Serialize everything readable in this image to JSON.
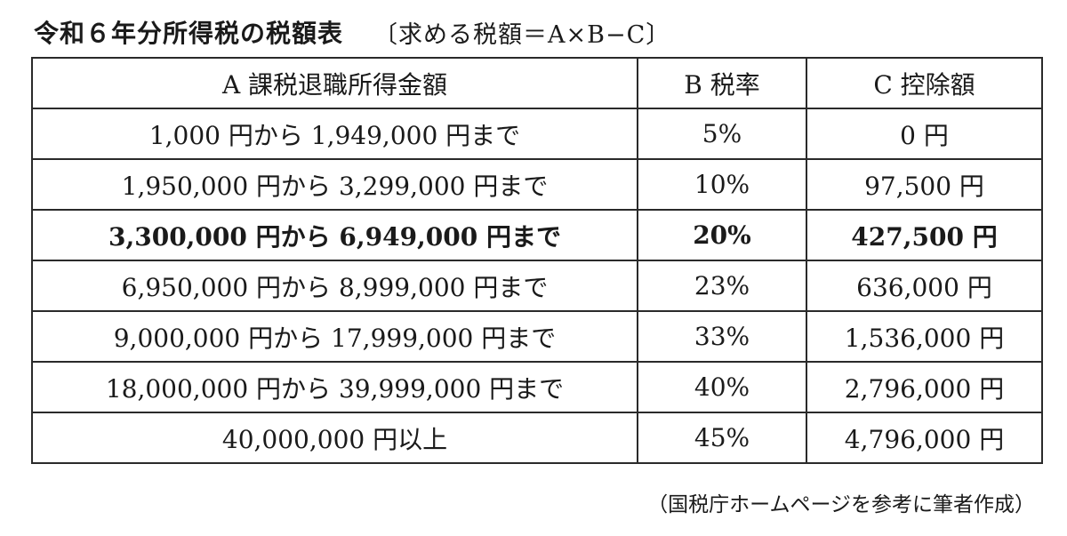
{
  "header": {
    "title": "令和６年分所得税の税額表",
    "formula": "〔求める税額＝A×B−C〕"
  },
  "table": {
    "columns": [
      "A 課税退職所得金額",
      "B 税率",
      "C 控除額"
    ],
    "rows": [
      {
        "range": "1,000 円から 1,949,000 円まで",
        "rate": "5%",
        "deduction": "0 円",
        "highlight": false
      },
      {
        "range": "1,950,000 円から 3,299,000 円まで",
        "rate": "10%",
        "deduction": "97,500 円",
        "highlight": false
      },
      {
        "range": "3,300,000 円から 6,949,000 円まで",
        "rate": "20%",
        "deduction": "427,500 円",
        "highlight": true
      },
      {
        "range": "6,950,000 円から 8,999,000 円まで",
        "rate": "23%",
        "deduction": "636,000 円",
        "highlight": false
      },
      {
        "range": "9,000,000 円から 17,999,000 円まで",
        "rate": "33%",
        "deduction": "1,536,000 円",
        "highlight": false
      },
      {
        "range": "18,000,000 円から 39,999,000 円まで",
        "rate": "40%",
        "deduction": "2,796,000 円",
        "highlight": false
      },
      {
        "range": "40,000,000 円以上",
        "rate": "45%",
        "deduction": "4,796,000 円",
        "highlight": false
      }
    ]
  },
  "footer": {
    "source": "（国税庁ホームページを参考に筆者作成）"
  }
}
